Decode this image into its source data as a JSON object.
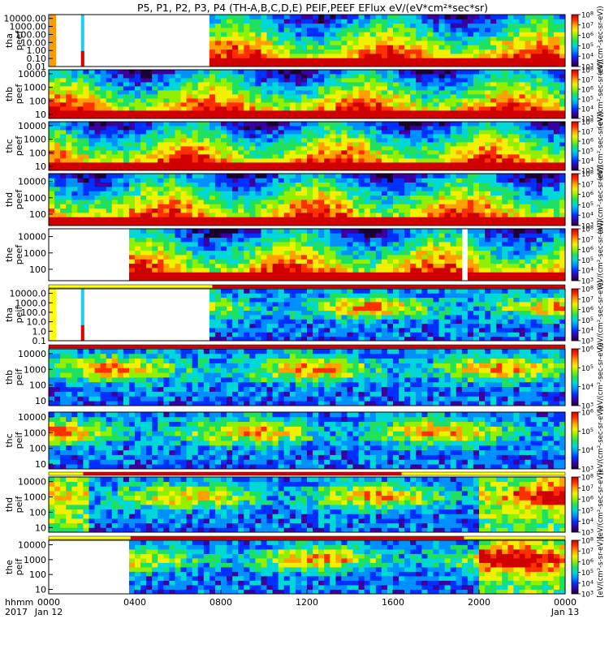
{
  "title": "P5, P1, P2, P3, P4 (TH-A,B,C,D,E) PEIF,PEEF EFlux eV/(eV*cm²*sec*sr)",
  "colors": {
    "cmap": [
      "#1a0033",
      "#3a00a0",
      "#0030ff",
      "#0090ff",
      "#00d8d8",
      "#20e060",
      "#90f000",
      "#f0f000",
      "#ffa000",
      "#ff3000",
      "#d00000"
    ],
    "flag_yellow": "#ffff00",
    "flag_red": "#dd0000",
    "flag_orange": "#ff9900",
    "flag_cyan": "#22ccee"
  },
  "chart_data": {
    "type": "heatmap",
    "x_time_range": [
      "2017-01-12 00:00",
      "2017-01-13 00:00"
    ],
    "x_ticks": [
      {
        "hour": 0,
        "label": "0000",
        "date": "Jan 12"
      },
      {
        "hour": 4,
        "label": "0400",
        "date": ""
      },
      {
        "hour": 8,
        "label": "0800",
        "date": ""
      },
      {
        "hour": 12,
        "label": "1200",
        "date": ""
      },
      {
        "hour": 16,
        "label": "1600",
        "date": ""
      },
      {
        "hour": 20,
        "label": "2000",
        "date": ""
      },
      {
        "hour": 24,
        "label": "0000",
        "date": "Jan 13"
      }
    ],
    "x_corner_labels": [
      "hhmm",
      "2017"
    ],
    "panels": [
      {
        "id": "tha_peef",
        "name": "tha\npeef",
        "species": "e",
        "coverage": [
          7.6,
          24
        ],
        "yticks": [
          {
            "v": 10000,
            "l": "10000.00"
          },
          {
            "v": 1000,
            "l": "1000.00"
          },
          {
            "v": 100,
            "l": "100.00"
          },
          {
            "v": 10,
            "l": "10.00"
          },
          {
            "v": 1,
            "l": "1.00"
          },
          {
            "v": 0.1,
            "l": "0.10"
          },
          {
            "v": 0.01,
            "l": "0.01"
          }
        ],
        "ylim": [
          0.01,
          30000
        ],
        "cb": {
          "min": 3,
          "max": 8
        },
        "cb_label": "(eV/(cm²-sec-sr-eV))"
      },
      {
        "id": "thb_peef",
        "name": "thb\npeef",
        "species": "e",
        "coverage": [
          0,
          24
        ],
        "yticks": [
          {
            "v": 10000,
            "l": "10000"
          },
          {
            "v": 1000,
            "l": "1000"
          },
          {
            "v": 100,
            "l": "100"
          },
          {
            "v": 10,
            "l": "10"
          }
        ],
        "ylim": [
          5,
          20000
        ],
        "cb": {
          "min": 3,
          "max": 8
        },
        "cb_label": "(eV/(cm²-sec-sr-eV))"
      },
      {
        "id": "thc_peef",
        "name": "thc\npeef",
        "species": "e",
        "coverage": [
          0,
          24
        ],
        "yticks": [
          {
            "v": 10000,
            "l": "10000"
          },
          {
            "v": 1000,
            "l": "1000"
          },
          {
            "v": 100,
            "l": "100"
          },
          {
            "v": 10,
            "l": "10"
          }
        ],
        "ylim": [
          5,
          20000
        ],
        "cb": {
          "min": 3,
          "max": 8
        },
        "cb_label": "(eV/(cm²-sec-sr-eV))"
      },
      {
        "id": "thd_peef",
        "name": "thd\npeef",
        "species": "e",
        "coverage": [
          0,
          24
        ],
        "yticks": [
          {
            "v": 10000,
            "l": "10000"
          },
          {
            "v": 1000,
            "l": "1000"
          },
          {
            "v": 100,
            "l": "100"
          }
        ],
        "ylim": [
          20,
          30000
        ],
        "cb": {
          "min": 3,
          "max": 8
        },
        "cb_label": "(eV/(cm²-sec-sr-eV))"
      },
      {
        "id": "the_peef",
        "name": "the\npeef",
        "species": "e",
        "coverage": [
          3.8,
          24
        ],
        "gap": [
          19.3,
          19.6
        ],
        "yticks": [
          {
            "v": 10000,
            "l": "10000"
          },
          {
            "v": 1000,
            "l": "1000"
          },
          {
            "v": 100,
            "l": "100"
          }
        ],
        "ylim": [
          20,
          30000
        ],
        "cb": {
          "min": 3,
          "max": 8
        },
        "cb_label": "(eV/(cm²-sec-sr-eV))"
      },
      {
        "id": "tha_peif",
        "name": "tha\npeif",
        "species": "i",
        "coverage": [
          7.6,
          24
        ],
        "yticks": [
          {
            "v": 10000,
            "l": "10000.0"
          },
          {
            "v": 1000,
            "l": "1000.0"
          },
          {
            "v": 100,
            "l": "100.0"
          },
          {
            "v": 10,
            "l": "10.0"
          },
          {
            "v": 1,
            "l": "1.0"
          },
          {
            "v": 0.1,
            "l": "0.1"
          }
        ],
        "ylim": [
          0.1,
          30000
        ],
        "cb": {
          "min": 3,
          "max": 8
        },
        "cb_label": "(eV/(cm²-sec-sr-eV))"
      },
      {
        "id": "thb_peif",
        "name": "thb\npeif",
        "species": "i",
        "coverage": [
          0,
          24
        ],
        "yticks": [
          {
            "v": 10000,
            "l": "10000"
          },
          {
            "v": 1000,
            "l": "1000"
          },
          {
            "v": 100,
            "l": "100"
          },
          {
            "v": 10,
            "l": "10"
          }
        ],
        "ylim": [
          5,
          20000
        ],
        "cb": {
          "min": 3,
          "max": 6
        },
        "cb_label": "(eV/(cm²-sec-sr-eV))"
      },
      {
        "id": "thc_peif",
        "name": "thc\npeif",
        "species": "i",
        "coverage": [
          0,
          24
        ],
        "yticks": [
          {
            "v": 10000,
            "l": "10000"
          },
          {
            "v": 1000,
            "l": "1000"
          },
          {
            "v": 100,
            "l": "100"
          },
          {
            "v": 10,
            "l": "10"
          }
        ],
        "ylim": [
          5,
          20000
        ],
        "cb": {
          "min": 3,
          "max": 6
        },
        "cb_label": "(eV/(cm²-sec-sr-eV))"
      },
      {
        "id": "thd_peif",
        "name": "thd\npeif",
        "species": "i",
        "coverage": [
          0,
          24
        ],
        "yticks": [
          {
            "v": 10000,
            "l": "10000"
          },
          {
            "v": 1000,
            "l": "1000"
          },
          {
            "v": 100,
            "l": "100"
          },
          {
            "v": 10,
            "l": "10"
          }
        ],
        "ylim": [
          5,
          20000
        ],
        "cb": {
          "min": 3,
          "max": 8
        },
        "cb_label": "(eV/(cm²-sec-sr-eV))"
      },
      {
        "id": "the_peif",
        "name": "the\npeif",
        "species": "i",
        "coverage": [
          3.8,
          24
        ],
        "yticks": [
          {
            "v": 10000,
            "l": "10000"
          },
          {
            "v": 1000,
            "l": "1000"
          },
          {
            "v": 100,
            "l": "100"
          },
          {
            "v": 10,
            "l": "10"
          }
        ],
        "ylim": [
          5,
          20000
        ],
        "cb": {
          "min": 3,
          "max": 8
        },
        "cb_label": "[eV/(cm²-s-sr-eV)]"
      }
    ],
    "flag_bars": [
      {
        "after": "the_peef",
        "segments": [
          {
            "from": 0,
            "to": 7.6,
            "color": "yellow"
          },
          {
            "from": 7.6,
            "to": 24,
            "color": "red"
          }
        ]
      },
      {
        "after": "tha_peif",
        "segments": [
          {
            "from": 0,
            "to": 24,
            "color": "red"
          }
        ]
      },
      {
        "after": "thc_peif",
        "segments": [
          {
            "from": 0,
            "to": 1.6,
            "color": "yellow"
          },
          {
            "from": 1.6,
            "to": 16.4,
            "color": "red"
          },
          {
            "from": 16.4,
            "to": 24,
            "color": "yellow"
          }
        ]
      },
      {
        "after": "thd_peif",
        "segments": [
          {
            "from": 0,
            "to": 3.8,
            "color": "yellow"
          },
          {
            "from": 3.8,
            "to": 19.3,
            "color": "red"
          },
          {
            "from": 19.3,
            "to": 24,
            "color": "yellow"
          }
        ]
      }
    ]
  }
}
